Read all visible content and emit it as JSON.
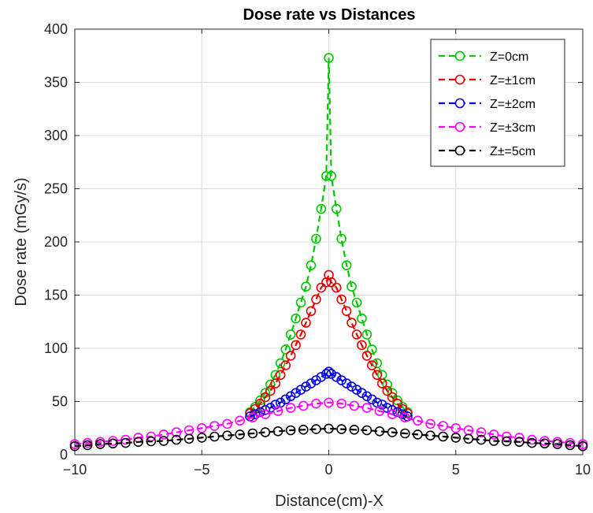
{
  "chart_data": {
    "type": "line",
    "title": "Dose rate vs Distances",
    "xlabel": "Distance(cm)-X",
    "ylabel": "Dose rate (mGy/s)",
    "xlim": [
      -10,
      10
    ],
    "ylim": [
      0,
      400
    ],
    "xticks": [
      -10,
      -5,
      0,
      5,
      10
    ],
    "yticks": [
      0,
      50,
      100,
      150,
      200,
      250,
      300,
      350,
      400
    ],
    "grid": true,
    "legend_position": "top-right",
    "marker": "circle",
    "linestyle": "dashed",
    "series": [
      {
        "name": "Z=0cm",
        "color": "#00c800",
        "x": [
          -3.1,
          -2.9,
          -2.7,
          -2.5,
          -2.3,
          -2.1,
          -1.9,
          -1.7,
          -1.5,
          -1.3,
          -1.1,
          -0.9,
          -0.7,
          -0.5,
          -0.3,
          -0.1,
          0,
          0.1,
          0.3,
          0.5,
          0.7,
          0.9,
          1.1,
          1.3,
          1.5,
          1.7,
          1.9,
          2.1,
          2.3,
          2.5,
          2.7,
          2.9,
          3.1
        ],
        "y": [
          40,
          45,
          51,
          58,
          66,
          75,
          86,
          99,
          113,
          128,
          143,
          158,
          178,
          203,
          231,
          262,
          373,
          262,
          231,
          203,
          178,
          158,
          143,
          128,
          113,
          99,
          86,
          75,
          66,
          58,
          51,
          45,
          40
        ]
      },
      {
        "name": "Z=±1cm",
        "color": "#e60000",
        "x": [
          -3.1,
          -2.9,
          -2.7,
          -2.5,
          -2.3,
          -2.1,
          -1.9,
          -1.7,
          -1.5,
          -1.3,
          -1.1,
          -0.9,
          -0.7,
          -0.5,
          -0.3,
          -0.1,
          0,
          0.1,
          0.3,
          0.5,
          0.7,
          0.9,
          1.1,
          1.3,
          1.5,
          1.7,
          1.9,
          2.1,
          2.3,
          2.5,
          2.7,
          2.9,
          3.1
        ],
        "y": [
          39,
          43,
          48,
          54,
          60,
          67,
          75,
          84,
          93,
          103,
          113,
          124,
          135,
          146,
          157,
          162,
          169,
          162,
          157,
          146,
          135,
          124,
          113,
          103,
          93,
          84,
          75,
          67,
          60,
          54,
          48,
          43,
          39
        ]
      },
      {
        "name": "Z=±2cm",
        "color": "#0000e6",
        "x": [
          -3.1,
          -2.9,
          -2.7,
          -2.5,
          -2.3,
          -2.1,
          -1.9,
          -1.7,
          -1.5,
          -1.3,
          -1.1,
          -0.9,
          -0.7,
          -0.5,
          -0.3,
          -0.1,
          0,
          0.1,
          0.3,
          0.5,
          0.7,
          0.9,
          1.1,
          1.3,
          1.5,
          1.7,
          1.9,
          2.1,
          2.3,
          2.5,
          2.7,
          2.9,
          3.1
        ],
        "y": [
          36,
          38,
          40,
          42,
          44,
          47,
          49,
          52,
          55,
          58,
          61,
          64,
          67,
          70,
          73,
          76,
          78,
          76,
          73,
          70,
          67,
          64,
          61,
          58,
          55,
          52,
          49,
          47,
          44,
          42,
          40,
          38,
          36
        ]
      },
      {
        "name": "Z=±3cm",
        "color": "#ff00ff",
        "x": [
          -10,
          -9.5,
          -9,
          -8.5,
          -8,
          -7.5,
          -7,
          -6.5,
          -6,
          -5.5,
          -5,
          -4.5,
          -4,
          -3.5,
          -3,
          -2.5,
          -2,
          -1.5,
          -1,
          -0.5,
          0,
          0.5,
          1,
          1.5,
          2,
          2.5,
          3,
          3.5,
          4,
          4.5,
          5,
          5.5,
          6,
          6.5,
          7,
          7.5,
          8,
          8.5,
          9,
          9.5,
          10
        ],
        "y": [
          10,
          11,
          12,
          13,
          14,
          16,
          17,
          19,
          21,
          23,
          25,
          27,
          29,
          32,
          35,
          38,
          41,
          44,
          46,
          48,
          49,
          48,
          46,
          44,
          41,
          38,
          35,
          32,
          29,
          27,
          25,
          23,
          21,
          19,
          17,
          16,
          14,
          13,
          12,
          11,
          10
        ]
      },
      {
        "name": "Z±=5cm",
        "color": "#000000",
        "x": [
          -10,
          -9.5,
          -9,
          -8.5,
          -8,
          -7.5,
          -7,
          -6.5,
          -6,
          -5.5,
          -5,
          -4.5,
          -4,
          -3.5,
          -3,
          -2.5,
          -2,
          -1.5,
          -1,
          -0.5,
          0,
          0.5,
          1,
          1.5,
          2,
          2.5,
          3,
          3.5,
          4,
          4.5,
          5,
          5.5,
          6,
          6.5,
          7,
          7.5,
          8,
          8.5,
          9,
          9.5,
          10
        ],
        "y": [
          8,
          9,
          10,
          10.5,
          11,
          12,
          12.5,
          13,
          14,
          15,
          16,
          17,
          18,
          19,
          20,
          21,
          22,
          23,
          23.5,
          24,
          24.5,
          24,
          23.5,
          23,
          22,
          21,
          20,
          19,
          18,
          17,
          16,
          15,
          14,
          13,
          12.5,
          12,
          11,
          10.5,
          10,
          9,
          8
        ]
      }
    ]
  }
}
